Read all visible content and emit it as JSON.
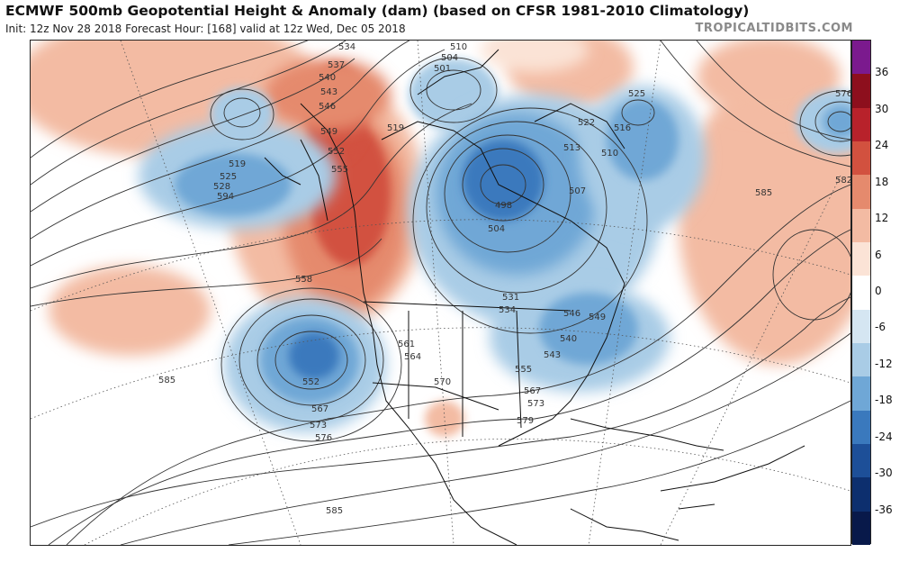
{
  "header": {
    "title": "ECMWF 500mb Geopotential Height & Anomaly (dam) (based on CFSR 1981-2010 Climatology)",
    "subtitle": "Init: 12z Nov 28 2018   Forecast Hour: [168]   valid at 12z Wed, Dec 05 2018",
    "brand": "TROPICALTIDBITS.COM"
  },
  "colorbar": {
    "labels": [
      "36",
      "30",
      "24",
      "18",
      "12",
      "6",
      "0",
      "-6",
      "-12",
      "-18",
      "-24",
      "-30",
      "-36"
    ],
    "colors": [
      "#7b1a8e",
      "#8d0f1d",
      "#b8222b",
      "#d2513f",
      "#e58a6d",
      "#f3bba3",
      "#fbe3d6",
      "#ffffff",
      "#d5e6f2",
      "#a9cce6",
      "#6fa7d6",
      "#3a79bd",
      "#1d4f98",
      "#0d2f6e",
      "#08194a"
    ]
  },
  "map": {
    "contour_labels": [
      {
        "text": "534"
      },
      {
        "text": "537"
      },
      {
        "text": "540"
      },
      {
        "text": "543"
      },
      {
        "text": "546"
      },
      {
        "text": "549"
      },
      {
        "text": "552"
      },
      {
        "text": "555"
      },
      {
        "text": "519"
      },
      {
        "text": "525"
      },
      {
        "text": "528"
      },
      {
        "text": "594"
      },
      {
        "text": "510"
      },
      {
        "text": "504"
      },
      {
        "text": "501"
      },
      {
        "text": "522"
      },
      {
        "text": "513"
      },
      {
        "text": "516"
      },
      {
        "text": "507"
      },
      {
        "text": "498"
      },
      {
        "text": "576"
      },
      {
        "text": "582"
      },
      {
        "text": "585"
      },
      {
        "text": "558"
      },
      {
        "text": "561"
      },
      {
        "text": "564"
      },
      {
        "text": "570"
      },
      {
        "text": "567"
      },
      {
        "text": "573"
      },
      {
        "text": "579"
      },
      {
        "text": "531"
      },
      {
        "text": "585"
      },
      {
        "text": "585"
      },
      {
        "text": "552"
      },
      {
        "text": "567"
      },
      {
        "text": "573"
      },
      {
        "text": "576"
      },
      {
        "text": "555"
      },
      {
        "text": "540"
      },
      {
        "text": "543"
      },
      {
        "text": "546"
      },
      {
        "text": "549"
      },
      {
        "text": "534"
      },
      {
        "text": "510"
      },
      {
        "text": "504"
      },
      {
        "text": "519"
      },
      {
        "text": "525"
      }
    ]
  }
}
